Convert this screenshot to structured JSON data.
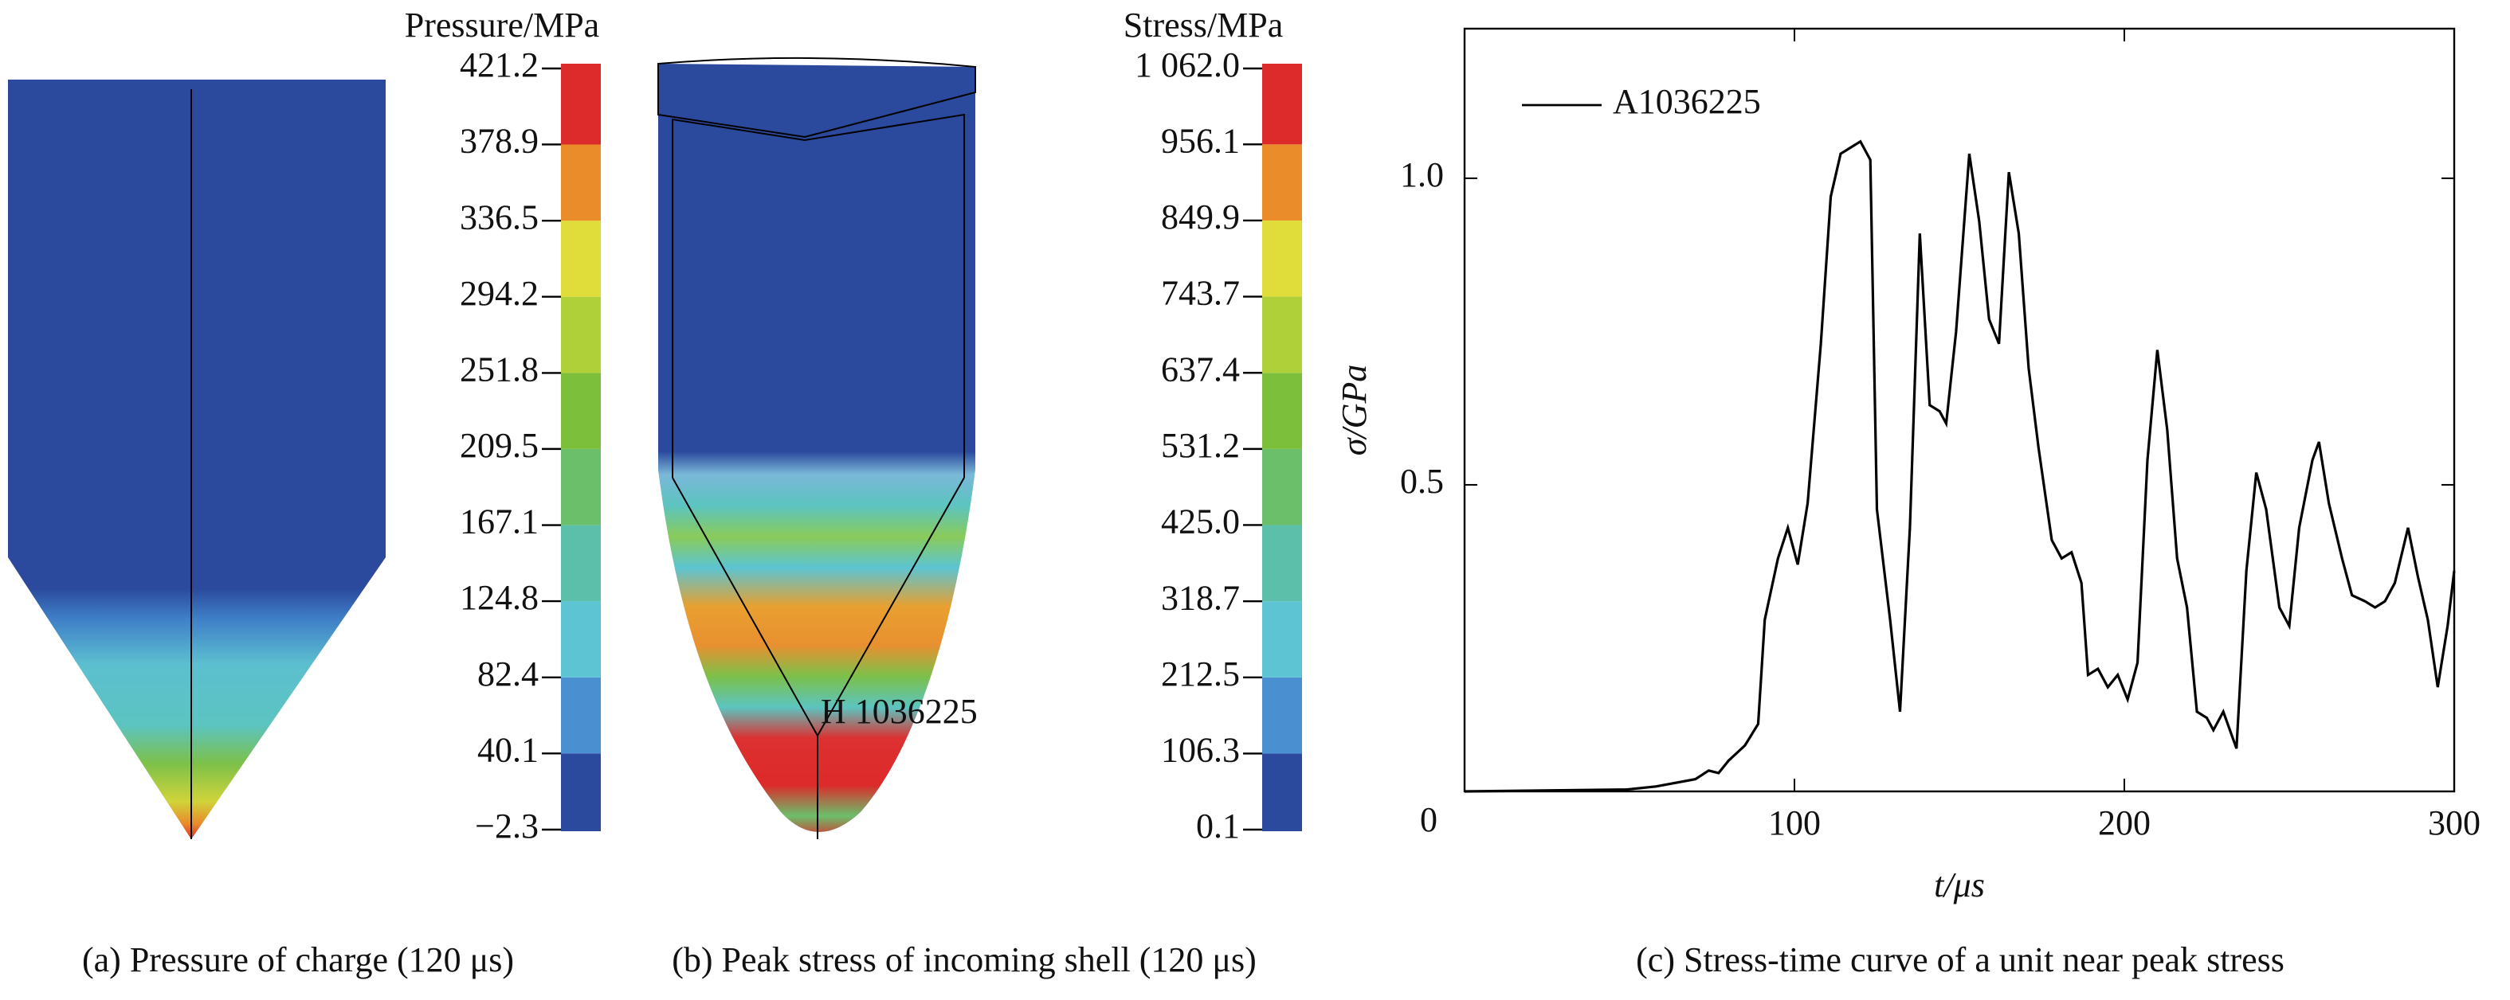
{
  "chart_data": [
    {
      "type": "contour",
      "title": "Pressure/MPa",
      "caption": "(a) Pressure of charge (120 μs)",
      "levels": [
        {
          "value": -2.3,
          "label": "−2.3"
        },
        40.1,
        82.4,
        124.8,
        167.1,
        209.5,
        251.8,
        294.2,
        336.5,
        378.9,
        421.2
      ],
      "colors": [
        "#2b4a9e",
        "#4a8fd0",
        "#5cc4d2",
        "#5cbfaa",
        "#6bbf6b",
        "#7cbf3a",
        "#b0d03a",
        "#e0dc3a",
        "#eb8c2a",
        "#dd2a2a"
      ]
    },
    {
      "type": "contour",
      "title": "Stress/MPa",
      "caption": "(b) Peak stress of incoming shell (120 μs)",
      "annotation": "H 1036225",
      "levels": [
        0.1,
        106.3,
        212.5,
        318.7,
        {
          "value": 425.0,
          "label": "425.0"
        },
        531.2,
        637.4,
        743.7,
        849.9,
        956.1,
        {
          "value": 1062.0,
          "label": "1 062.0"
        }
      ],
      "colors": [
        "#2b4a9e",
        "#4a8fd0",
        "#5cc4d2",
        "#5cbfaa",
        "#6bbf6b",
        "#7cbf3a",
        "#b0d03a",
        "#e0dc3a",
        "#eb8c2a",
        "#dd2a2a"
      ]
    },
    {
      "type": "line",
      "caption": "(c) Stress-time curve of a unit near peak stress",
      "x_label": "t/μs",
      "y_label": "σ/GPa",
      "xlim": [
        0,
        300
      ],
      "ylim": [
        0,
        1.244
      ],
      "xticks": [
        100,
        200,
        300
      ],
      "yticks": [
        0,
        0.5,
        {
          "value": 1.0,
          "label": "1.0"
        }
      ],
      "x": [
        0,
        49,
        58,
        66,
        70,
        74,
        77,
        80,
        85,
        89,
        91,
        95,
        98,
        101,
        104,
        108,
        111,
        114,
        117,
        120,
        123,
        125,
        129,
        132,
        135,
        138,
        141,
        144,
        146,
        149,
        153,
        156,
        159,
        162,
        165,
        168,
        171,
        174,
        178,
        181,
        184,
        187,
        189,
        192,
        195,
        198,
        201,
        204,
        207,
        210,
        213,
        216,
        219,
        222,
        225,
        227,
        230,
        234,
        237,
        240,
        243,
        247,
        250,
        253,
        257,
        259,
        262,
        266,
        269,
        273,
        276,
        279,
        282,
        286,
        289,
        292,
        295,
        298,
        300
      ],
      "series": [
        {
          "name": "A1036225",
          "color": "#000000",
          "values": [
            0,
            0.003,
            0.008,
            0.016,
            0.02,
            0.034,
            0.03,
            0.05,
            0.075,
            0.11,
            0.28,
            0.38,
            0.43,
            0.37,
            0.47,
            0.73,
            0.97,
            1.04,
            1.05,
            1.06,
            1.03,
            0.46,
            0.28,
            0.13,
            0.43,
            0.91,
            0.63,
            0.62,
            0.6,
            0.75,
            1.04,
            0.93,
            0.77,
            0.73,
            1.01,
            0.91,
            0.69,
            0.56,
            0.41,
            0.38,
            0.39,
            0.34,
            0.19,
            0.2,
            0.17,
            0.19,
            0.15,
            0.21,
            0.54,
            0.72,
            0.59,
            0.38,
            0.3,
            0.13,
            0.12,
            0.1,
            0.13,
            0.07,
            0.36,
            0.52,
            0.46,
            0.3,
            0.27,
            0.43,
            0.54,
            0.57,
            0.47,
            0.38,
            0.32,
            0.31,
            0.3,
            0.31,
            0.34,
            0.43,
            0.35,
            0.28,
            0.17,
            0.27,
            0.36
          ]
        }
      ]
    }
  ]
}
